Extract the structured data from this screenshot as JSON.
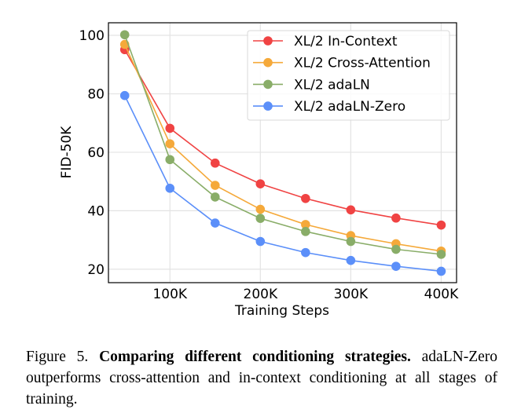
{
  "chart_data": {
    "type": "line",
    "title": "",
    "xlabel": "Training Steps",
    "ylabel": "FID-50K",
    "x": [
      50000,
      100000,
      150000,
      200000,
      250000,
      300000,
      350000,
      400000
    ],
    "xlim": [
      32000,
      417000
    ],
    "ylim": [
      15.4,
      104.3
    ],
    "xticks": [
      100000,
      200000,
      300000,
      400000
    ],
    "xtick_labels": [
      "100K",
      "200K",
      "300K",
      "400K"
    ],
    "yticks": [
      20,
      40,
      60,
      80,
      100
    ],
    "ytick_labels": [
      "20",
      "40",
      "60",
      "80",
      "100"
    ],
    "grid": true,
    "legend_position": "top-right",
    "series": [
      {
        "name": "XL/2 In-Context",
        "color": "#f04343",
        "values": [
          95.1,
          68.2,
          56.3,
          49.2,
          44.2,
          40.3,
          37.5,
          35.1
        ]
      },
      {
        "name": "XL/2 Cross-Attention",
        "color": "#f5a93a",
        "values": [
          96.9,
          62.9,
          48.7,
          40.5,
          35.3,
          31.5,
          28.7,
          26.2
        ]
      },
      {
        "name": "XL/2 adaLN",
        "color": "#89ad68",
        "values": [
          100.2,
          57.5,
          44.7,
          37.4,
          32.9,
          29.5,
          26.8,
          25.1
        ]
      },
      {
        "name": "XL/2 adaLN-Zero",
        "color": "#5b8ff9",
        "values": [
          79.4,
          47.7,
          35.8,
          29.5,
          25.7,
          23.0,
          21.0,
          19.3
        ]
      }
    ]
  },
  "caption": {
    "label": "Figure 5.",
    "title": "Comparing different conditioning strategies.",
    "body": "adaLN-Zero outperforms cross-attention and in-context conditioning at all stages of training."
  }
}
